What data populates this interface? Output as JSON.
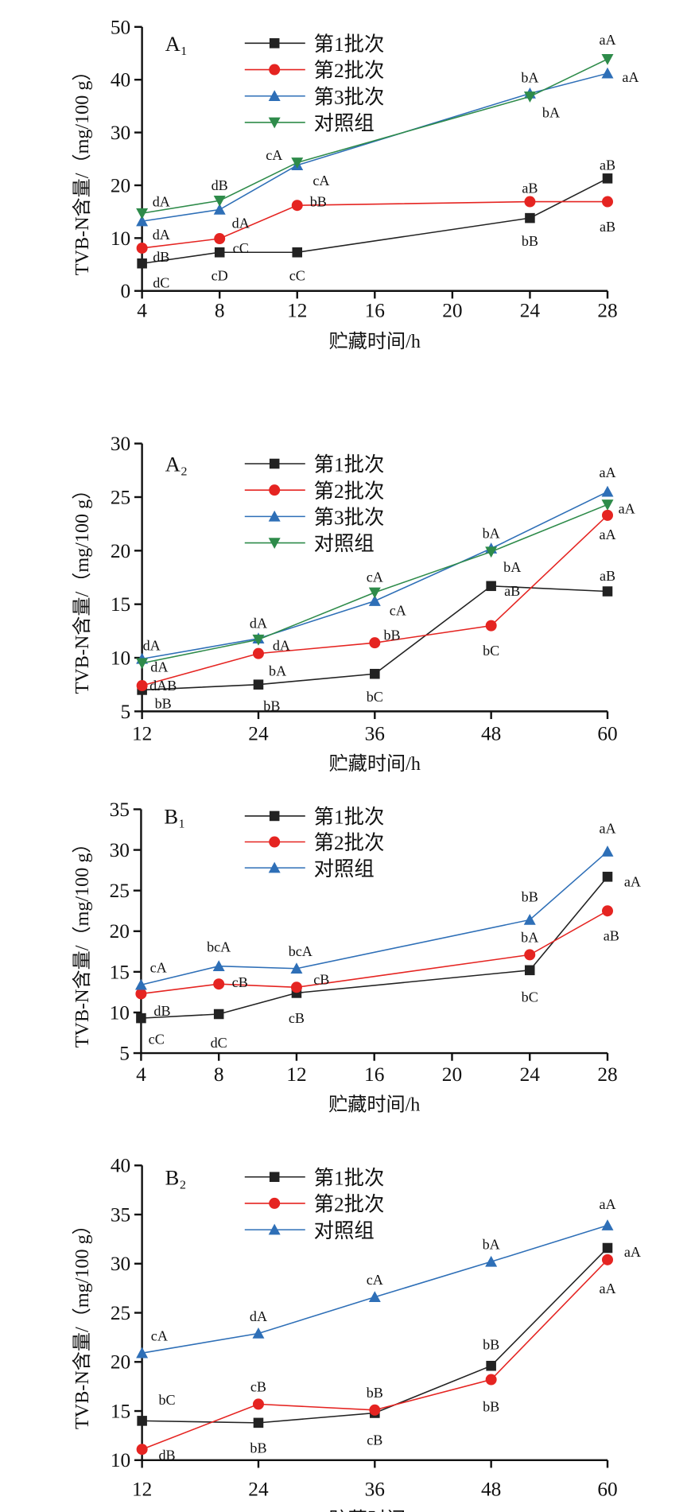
{
  "chart_data": [
    {
      "type": "line",
      "title": "A₁",
      "xlabel": "贮藏时间/h",
      "ylabel": "TVB-N含量/（mg/100 g）",
      "x": [
        4,
        8,
        12,
        24,
        28
      ],
      "xticks": [
        4,
        8,
        12,
        16,
        20,
        24,
        28
      ],
      "xlim": [
        4,
        28
      ],
      "yticks": [
        0,
        10,
        20,
        30,
        40,
        50
      ],
      "ylim": [
        0,
        50
      ],
      "grid": false,
      "legend": "top-center",
      "series": [
        {
          "name": "第1批次",
          "color": "#222222",
          "marker": "square",
          "values": [
            5.2,
            7.3,
            7.3,
            13.8,
            21.3
          ],
          "labels": [
            "dC",
            "cD",
            "cC",
            "bB",
            "aB"
          ]
        },
        {
          "name": "第2批次",
          "color": "#e52421",
          "marker": "circle",
          "values": [
            8.1,
            9.9,
            16.2,
            16.9,
            16.9
          ],
          "labels": [
            "dB",
            "cC",
            "bB",
            "aB",
            "aB"
          ]
        },
        {
          "name": "第3批次",
          "color": "#2e6fb7",
          "marker": "triangle-up",
          "values": [
            13.2,
            15.4,
            23.8,
            37.4,
            41.2
          ],
          "labels": [
            "dA",
            "dA",
            "cA",
            "bA",
            "aA"
          ]
        },
        {
          "name": "对照组",
          "color": "#2e8b4a",
          "marker": "triangle-down",
          "values": [
            14.7,
            17.1,
            24.3,
            36.8,
            43.9
          ],
          "labels": [
            "dA",
            "dB",
            "cA",
            "bA",
            "aA"
          ]
        }
      ]
    },
    {
      "type": "line",
      "title": "A₂",
      "xlabel": "贮藏时间/h",
      "ylabel": "TVB-N含量/（mg/100 g）",
      "x": [
        12,
        24,
        36,
        48,
        60
      ],
      "xticks": [
        12,
        24,
        36,
        48,
        60
      ],
      "xlim": [
        12,
        60
      ],
      "yticks": [
        5,
        10,
        15,
        20,
        25,
        30
      ],
      "ylim": [
        5,
        30
      ],
      "grid": false,
      "legend": "top-center",
      "series": [
        {
          "name": "第1批次",
          "color": "#222222",
          "marker": "square",
          "values": [
            7.0,
            7.5,
            8.5,
            16.7,
            16.2
          ],
          "labels": [
            "bB",
            "bB",
            "bC",
            "aB",
            "aB"
          ]
        },
        {
          "name": "第2批次",
          "color": "#e52421",
          "marker": "circle",
          "values": [
            7.4,
            10.4,
            11.4,
            13.0,
            23.3
          ],
          "labels": [
            "dAB",
            "bA",
            "bB",
            "bC",
            "aA"
          ]
        },
        {
          "name": "第3批次",
          "color": "#2e6fb7",
          "marker": "triangle-up",
          "values": [
            9.9,
            11.8,
            15.3,
            20.2,
            25.5
          ],
          "labels": [
            "dA",
            "dA",
            "cA",
            "bA",
            "aA"
          ]
        },
        {
          "name": "对照组",
          "color": "#2e8b4a",
          "marker": "triangle-down",
          "values": [
            9.5,
            11.7,
            16.1,
            19.9,
            24.3
          ],
          "labels": [
            "dA",
            "dA",
            "cA",
            "bA",
            "aA"
          ]
        }
      ]
    },
    {
      "type": "line",
      "title": "B₁",
      "xlabel": "贮藏时间/h",
      "ylabel": "TVB-N含量/（mg/100 g）",
      "x": [
        4,
        8,
        12,
        24,
        28
      ],
      "xticks": [
        4,
        8,
        12,
        16,
        20,
        24,
        28
      ],
      "xlim": [
        4,
        28
      ],
      "yticks": [
        5,
        10,
        15,
        20,
        25,
        30,
        35
      ],
      "ylim": [
        5,
        35
      ],
      "grid": false,
      "legend": "top-center",
      "series": [
        {
          "name": "第1批次",
          "color": "#222222",
          "marker": "square",
          "values": [
            9.3,
            9.8,
            12.4,
            15.2,
            26.7
          ],
          "labels": [
            "cC",
            "dC",
            "cB",
            "bC",
            "aA"
          ]
        },
        {
          "name": "第2批次",
          "color": "#e52421",
          "marker": "circle",
          "values": [
            12.3,
            13.5,
            13.1,
            17.1,
            22.5
          ],
          "labels": [
            "dB",
            "cB",
            "cB",
            "bA",
            "aB"
          ]
        },
        {
          "name": "对照组",
          "color": "#2e6fb7",
          "marker": "triangle-up",
          "values": [
            13.4,
            15.7,
            15.4,
            21.4,
            29.8
          ],
          "labels": [
            "cA",
            "bcA",
            "bcA",
            "bB",
            "aA"
          ]
        }
      ]
    },
    {
      "type": "line",
      "title": "B₂",
      "xlabel": "贮藏时间/h",
      "ylabel": "TVB-N含量/（mg/100 g）",
      "x": [
        12,
        24,
        36,
        48,
        60
      ],
      "xticks": [
        12,
        24,
        36,
        48,
        60
      ],
      "xlim": [
        12,
        60
      ],
      "yticks": [
        10,
        15,
        20,
        25,
        30,
        35,
        40
      ],
      "ylim": [
        10,
        40
      ],
      "grid": false,
      "legend": "top-center",
      "series": [
        {
          "name": "第1批次",
          "color": "#222222",
          "marker": "square",
          "values": [
            14.0,
            13.8,
            14.8,
            19.6,
            31.6
          ],
          "labels": [
            "bC",
            "bB",
            "cB",
            "bB",
            "aA"
          ]
        },
        {
          "name": "第2批次",
          "color": "#e52421",
          "marker": "circle",
          "values": [
            11.1,
            15.7,
            15.1,
            18.2,
            30.4
          ],
          "labels": [
            "dB",
            "cB",
            "bB",
            "bB",
            "aA"
          ]
        },
        {
          "name": "对照组",
          "color": "#2e6fb7",
          "marker": "triangle-up",
          "values": [
            20.9,
            22.9,
            26.6,
            30.2,
            33.9
          ],
          "labels": [
            "cA",
            "dA",
            "cA",
            "bA",
            "aA"
          ]
        }
      ]
    }
  ]
}
